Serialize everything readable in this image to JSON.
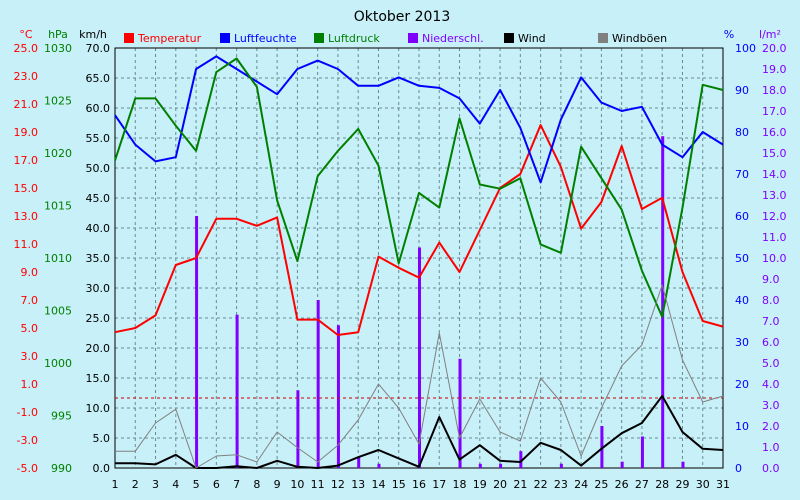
{
  "chart_data": {
    "type": "line",
    "title": "Oktober 2013",
    "x": [
      1,
      2,
      3,
      4,
      5,
      6,
      7,
      8,
      9,
      10,
      11,
      12,
      13,
      14,
      15,
      16,
      17,
      18,
      19,
      20,
      21,
      22,
      23,
      24,
      25,
      26,
      27,
      28,
      29,
      30,
      31
    ],
    "axes": {
      "temp": {
        "unit": "°C",
        "min": -5.0,
        "max": 25.0,
        "ticks": [
          "25.0",
          "23.0",
          "21.0",
          "19.0",
          "17.0",
          "15.0",
          "13.0",
          "11.0",
          "9.0",
          "7.0",
          "5.0",
          "3.0",
          "1.0",
          "-1.0",
          "-3.0",
          "-5.0"
        ]
      },
      "pressure": {
        "unit": "hPa",
        "min": 990,
        "max": 1030,
        "ticks": [
          "1030",
          "1025",
          "1020",
          "1015",
          "1010",
          "1005",
          "1000",
          "995",
          "990"
        ]
      },
      "wind": {
        "unit": "km/h",
        "min": 0,
        "max": 70,
        "ticks": [
          "70.0",
          "65.0",
          "60.0",
          "55.0",
          "50.0",
          "45.0",
          "40.0",
          "35.0",
          "30.0",
          "25.0",
          "20.0",
          "15.0",
          "10.0",
          "5.0",
          "0.0"
        ]
      },
      "humidity": {
        "unit": "%",
        "min": 0,
        "max": 100,
        "ticks": [
          "100",
          "90",
          "80",
          "70",
          "60",
          "50",
          "40",
          "30",
          "20",
          "10",
          "0"
        ]
      },
      "rain": {
        "unit": "l/m²",
        "min": 0,
        "max": 20,
        "ticks": [
          "20.0",
          "19.0",
          "18.0",
          "17.0",
          "16.0",
          "15.0",
          "14.0",
          "13.0",
          "12.0",
          "11.0",
          "10.0",
          "9.0",
          "8.0",
          "7.0",
          "6.0",
          "5.0",
          "4.0",
          "3.0",
          "2.0",
          "1.0",
          "0.0"
        ]
      }
    },
    "series": [
      {
        "name": "Temperatur",
        "axis": "temp",
        "color": "#ff0000",
        "kind": "line",
        "values": [
          4.7,
          5.0,
          5.9,
          9.5,
          10.0,
          12.8,
          12.8,
          12.3,
          12.9,
          5.6,
          5.6,
          4.5,
          4.7,
          10.1,
          9.3,
          8.6,
          11.1,
          9.0,
          12.0,
          15.0,
          16.0,
          19.5,
          16.5,
          12.1,
          14.0,
          18.0,
          13.5,
          14.3,
          9.0,
          5.5,
          5.1
        ]
      },
      {
        "name": "Luftfeuchte",
        "axis": "humidity",
        "color": "#0000ff",
        "kind": "line",
        "values": [
          84,
          77,
          73,
          74,
          95,
          98,
          95,
          92,
          89,
          95,
          97,
          95,
          91,
          91,
          93,
          91,
          90.5,
          88,
          82,
          90,
          81,
          68,
          83,
          93,
          87,
          85,
          86,
          77,
          74,
          80,
          77
        ]
      },
      {
        "name": "Luftdruck",
        "axis": "pressure",
        "color": "#008000",
        "kind": "line",
        "values": [
          1019.3,
          1025.2,
          1025.2,
          1022.6,
          1020.2,
          1027.7,
          1029.0,
          1026.3,
          1015.5,
          1009.7,
          1017.8,
          1020.2,
          1022.3,
          1018.8,
          1009.5,
          1016.2,
          1014.8,
          1023.3,
          1017.0,
          1016.6,
          1017.6,
          1011.3,
          1010.5,
          1020.6,
          1017.6,
          1014.6,
          1008.8,
          1004.4,
          1014.8,
          1026.5,
          1026.0
        ]
      },
      {
        "name": "Niederschl.",
        "axis": "rain",
        "color": "#8000ff",
        "kind": "bar",
        "values": [
          0,
          0,
          0,
          0,
          12.0,
          0,
          7.3,
          0,
          0,
          3.7,
          8.0,
          6.8,
          0.5,
          0.2,
          0,
          10.5,
          0,
          5.2,
          0.2,
          0.2,
          0.8,
          0,
          0.2,
          0,
          2.0,
          0.3,
          1.5,
          15.8,
          0.3,
          0,
          0
        ]
      },
      {
        "name": "Wind",
        "axis": "wind",
        "color": "#000000",
        "kind": "line",
        "values": [
          0.8,
          0.8,
          0.6,
          2.2,
          0,
          0,
          0.3,
          0,
          1.2,
          0.2,
          0,
          0.4,
          1.8,
          3.0,
          1.6,
          0.2,
          8.5,
          1.4,
          3.8,
          1.2,
          1.0,
          4.2,
          3.0,
          0.4,
          3.2,
          5.8,
          7.5,
          12.0,
          6.0,
          3.2,
          3.0
        ]
      },
      {
        "name": "Windböen",
        "axis": "wind",
        "color": "#808080",
        "kind": "line",
        "values": [
          2.8,
          2.8,
          7.5,
          9.8,
          0,
          2.0,
          2.2,
          1.0,
          6.0,
          3.4,
          1.0,
          3.8,
          8.0,
          14.0,
          10.0,
          4.0,
          22.5,
          5.0,
          11.5,
          6.0,
          4.5,
          15.0,
          11.0,
          2.0,
          10.0,
          17.0,
          20.5,
          30.5,
          18.0,
          11.0,
          12.0
        ]
      }
    ],
    "reference_line": {
      "axis": "temp",
      "value": 0,
      "color": "#cc0000"
    },
    "grid": true,
    "legend_position": "top"
  }
}
